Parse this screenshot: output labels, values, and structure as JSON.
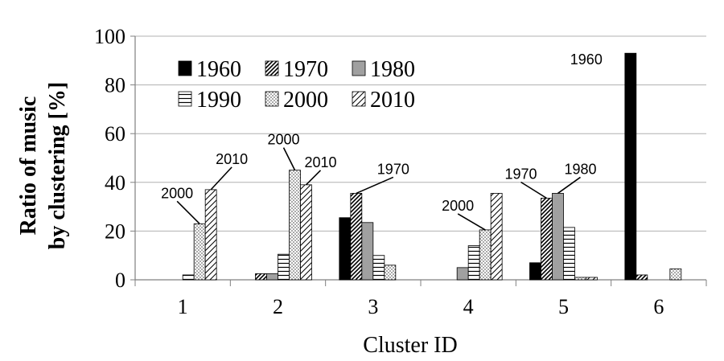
{
  "chart_data": {
    "type": "bar",
    "title": "",
    "xlabel": "Cluster ID",
    "ylabel_line1": "Ratio of music",
    "ylabel_line2": "by clustering [%]",
    "ylim": [
      0,
      100
    ],
    "yticks": [
      0,
      20,
      40,
      60,
      80,
      100
    ],
    "grid": true,
    "legend_position": "top-left",
    "categories": [
      "1",
      "2",
      "3",
      "4",
      "5",
      "6"
    ],
    "series": [
      {
        "name": "1960",
        "pattern": "solid-black",
        "values": [
          0,
          0,
          25.5,
          0,
          7,
          93
        ]
      },
      {
        "name": "1970",
        "pattern": "diagonal-dense",
        "values": [
          0,
          2.5,
          35.5,
          0,
          33.5,
          2
        ]
      },
      {
        "name": "1980",
        "pattern": "solid-gray",
        "values": [
          0,
          2.5,
          23.5,
          5,
          35.5,
          0
        ]
      },
      {
        "name": "1990",
        "pattern": "horizontal-lines",
        "values": [
          2,
          10.5,
          10,
          14,
          21.5,
          0
        ]
      },
      {
        "name": "2000",
        "pattern": "dotted",
        "values": [
          23,
          45,
          6,
          20.5,
          1,
          4.5
        ]
      },
      {
        "name": "2010",
        "pattern": "diagonal-wide",
        "values": [
          37,
          39,
          0,
          35.5,
          1,
          0
        ]
      }
    ],
    "annotations": [
      {
        "label": "2000",
        "category": "1",
        "series": "2000"
      },
      {
        "label": "2010",
        "category": "1",
        "series": "2010"
      },
      {
        "label": "2000",
        "category": "2",
        "series": "2000"
      },
      {
        "label": "2010",
        "category": "2",
        "series": "2010"
      },
      {
        "label": "1970",
        "category": "3",
        "series": "1970"
      },
      {
        "label": "2000",
        "category": "4",
        "series": "2000"
      },
      {
        "label": "1970",
        "category": "5",
        "series": "1970"
      },
      {
        "label": "1980",
        "category": "5",
        "series": "1980"
      },
      {
        "label": "1960",
        "category": "6",
        "series": "1960"
      }
    ],
    "colors": {
      "black": "#000000",
      "gray": "#a0a0a0",
      "grid": "#b0b0b0",
      "axis": "#808080"
    }
  }
}
